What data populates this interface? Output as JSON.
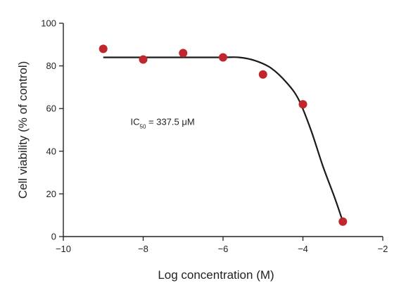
{
  "chart_data": {
    "type": "scatter",
    "title": "",
    "xlabel": "Log concentration (M)",
    "ylabel": "Cell viability (% of control)",
    "xlim": [
      -10,
      -2
    ],
    "ylim": [
      0,
      100
    ],
    "xticks": [
      -10,
      -8,
      -6,
      -4,
      -2
    ],
    "xtick_labels": [
      "−10",
      "−8",
      "−6",
      "−4",
      "−2"
    ],
    "yticks": [
      0,
      20,
      40,
      60,
      80,
      100
    ],
    "ytick_labels": [
      "0",
      "20",
      "40",
      "60",
      "80",
      "100"
    ],
    "grid": false,
    "series": [
      {
        "points": [
          {
            "x": -9,
            "y": 88
          },
          {
            "x": -8,
            "y": 83
          },
          {
            "x": -7,
            "y": 86
          },
          {
            "x": -6,
            "y": 84
          },
          {
            "x": -5,
            "y": 76
          },
          {
            "x": -4,
            "y": 62
          },
          {
            "x": -3,
            "y": 7
          }
        ],
        "marker": "circle",
        "color": "#c0272d"
      }
    ],
    "fit_curve": {
      "points": [
        {
          "x": -9,
          "y": 84
        },
        {
          "x": -8,
          "y": 84
        },
        {
          "x": -7,
          "y": 84
        },
        {
          "x": -6,
          "y": 84
        },
        {
          "x": -5.6,
          "y": 84
        },
        {
          "x": -5.2,
          "y": 82.5
        },
        {
          "x": -4.8,
          "y": 79
        },
        {
          "x": -4.4,
          "y": 72
        },
        {
          "x": -4.1,
          "y": 64
        },
        {
          "x": -3.8,
          "y": 50
        },
        {
          "x": -3.5,
          "y": 33
        },
        {
          "x": -3.2,
          "y": 18
        },
        {
          "x": -3,
          "y": 7
        }
      ],
      "color": "#1a1a1a"
    },
    "annotation": {
      "prefix": "IC",
      "subscript": "50",
      "text": " = 337.5 μM",
      "x": -8,
      "y": 55
    },
    "axis_color": "#222222"
  }
}
